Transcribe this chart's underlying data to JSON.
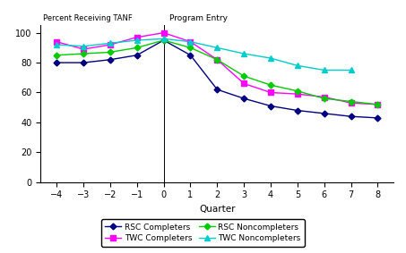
{
  "quarters": [
    -4,
    -3,
    -2,
    -1,
    0,
    1,
    2,
    3,
    4,
    5,
    6,
    7,
    8
  ],
  "rsc_completers": [
    80,
    80,
    82,
    85,
    95,
    85,
    62,
    56,
    51,
    48,
    46,
    44,
    43
  ],
  "twc_completers": [
    94,
    89,
    92,
    97,
    100,
    94,
    82,
    66,
    60,
    59,
    57,
    53,
    52
  ],
  "rsc_noncompleters": [
    85,
    86,
    87,
    90,
    95,
    90,
    82,
    71,
    65,
    61,
    56,
    54,
    52
  ],
  "twc_noncompleters": [
    92,
    91,
    93,
    95,
    96,
    94,
    90,
    86,
    83,
    78,
    75,
    75,
    null
  ],
  "colors": {
    "rsc_completers": "#000080",
    "twc_completers": "#ff00ff",
    "rsc_noncompleters": "#00cc00",
    "twc_noncompleters": "#00cccc"
  },
  "xlabel": "Quarter",
  "ylabel": "Percent Receiving TANF",
  "program_entry_label": "Program Entry",
  "ylim": [
    0,
    105
  ],
  "yticks": [
    0,
    20,
    40,
    60,
    80,
    100
  ],
  "legend_entries": [
    "RSC Completers",
    "TWC Completers",
    "RSC Noncompleters",
    "TWC Noncompleters"
  ]
}
